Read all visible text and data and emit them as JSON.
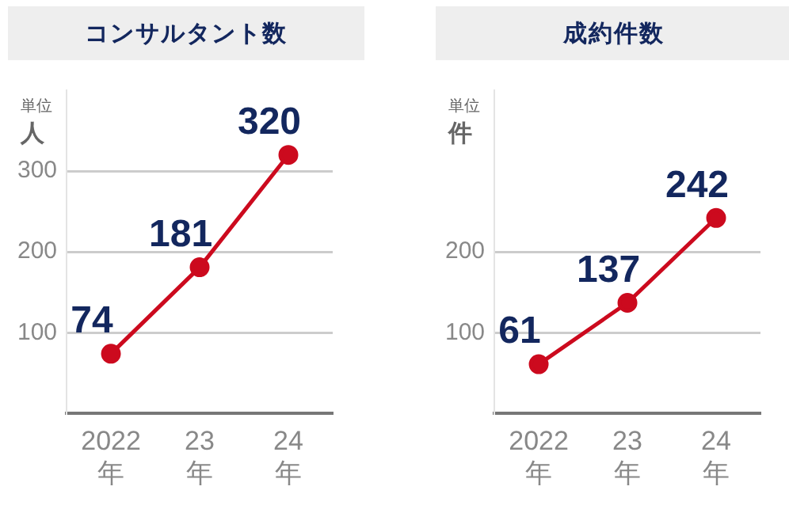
{
  "chart_data": [
    {
      "type": "line",
      "title": "コンサルタント数",
      "ylabel": "人",
      "annotations": [
        "単位"
      ],
      "categories": [
        "2022\n年",
        "23\n年",
        "24\n年"
      ],
      "values": [
        74,
        181,
        320
      ],
      "color": "#cc0a1e",
      "ylim": [
        0,
        400
      ],
      "yticks": [
        100,
        200,
        300
      ],
      "grid": "y",
      "data_labels": true,
      "marker": "circle"
    },
    {
      "type": "line",
      "title": "成約件数",
      "ylabel": "件",
      "annotations": [
        "単位"
      ],
      "categories": [
        "2022\n年",
        "23\n年",
        "24\n年"
      ],
      "values": [
        61,
        137,
        242
      ],
      "color": "#cc0a1e",
      "ylim": [
        0,
        400
      ],
      "yticks": [
        100,
        200
      ],
      "grid": "y",
      "data_labels": true,
      "marker": "circle"
    }
  ]
}
